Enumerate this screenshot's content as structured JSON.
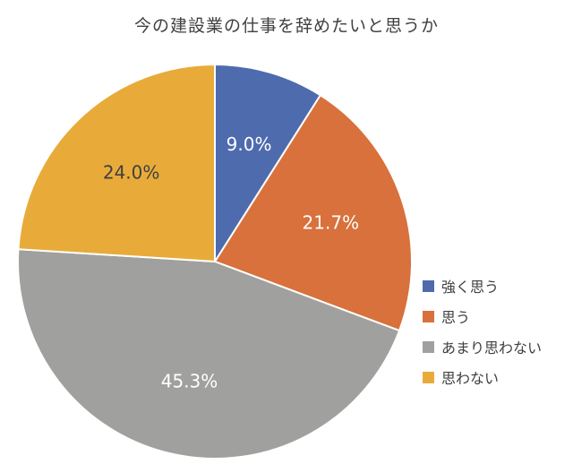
{
  "chart_data": {
    "type": "pie",
    "title": "今の建設業の仕事を辞めたいと思うか",
    "categories": [
      "強く思う",
      "思う",
      "あまり思わない",
      "思わない"
    ],
    "values": [
      9.0,
      21.7,
      45.3,
      24.0
    ],
    "labels": [
      "9.0%",
      "21.7%",
      "45.3%",
      "24.0%"
    ],
    "colors": [
      "#4E6BAE",
      "#D8713B",
      "#A0A09E",
      "#E8AB3A"
    ],
    "label_colors": [
      "#ffffff",
      "#ffffff",
      "#ffffff",
      "#404040"
    ],
    "legend_position": "right",
    "start": "12 o'clock, clockwise"
  }
}
